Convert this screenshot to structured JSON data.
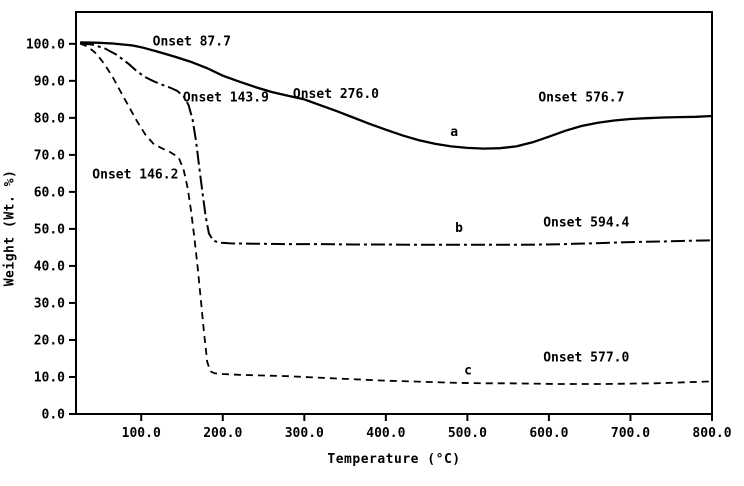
{
  "colors": {
    "foreground": "#000000",
    "background": "#ffffff"
  },
  "chart_data": {
    "type": "line",
    "title": "",
    "xlabel": "Temperature (°C)",
    "ylabel": "Weight (Wt. %)",
    "xlim": [
      20,
      800
    ],
    "ylim": [
      0,
      108.6
    ],
    "grid": false,
    "legend_position": "none",
    "x_ticks": [
      100,
      200,
      300,
      400,
      500,
      600,
      700,
      800
    ],
    "x_tick_labels": [
      "100.0",
      "200.0",
      "300.0",
      "400.0",
      "500.0",
      "600.0",
      "700.0",
      "800.0"
    ],
    "y_ticks": [
      0,
      10,
      20,
      30,
      40,
      50,
      60,
      70,
      80,
      90,
      100
    ],
    "y_tick_labels": [
      "0.0",
      "10.0",
      "20.0",
      "30.0",
      "40.0",
      "50.0",
      "60.0",
      "70.0",
      "80.0",
      "90.0",
      "100.0"
    ],
    "series": [
      {
        "name": "a",
        "style": "solid",
        "points": [
          [
            25,
            100.4
          ],
          [
            45,
            100.3
          ],
          [
            65,
            100.1
          ],
          [
            88,
            99.6
          ],
          [
            100,
            99.1
          ],
          [
            120,
            97.9
          ],
          [
            140,
            96.6
          ],
          [
            160,
            95.2
          ],
          [
            180,
            93.5
          ],
          [
            200,
            91.4
          ],
          [
            220,
            89.8
          ],
          [
            240,
            88.3
          ],
          [
            260,
            87.0
          ],
          [
            280,
            86.0
          ],
          [
            300,
            85.0
          ],
          [
            320,
            83.4
          ],
          [
            340,
            81.8
          ],
          [
            360,
            80.1
          ],
          [
            380,
            78.4
          ],
          [
            400,
            76.8
          ],
          [
            420,
            75.3
          ],
          [
            440,
            74.0
          ],
          [
            460,
            73.0
          ],
          [
            480,
            72.3
          ],
          [
            500,
            71.9
          ],
          [
            520,
            71.7
          ],
          [
            540,
            71.8
          ],
          [
            560,
            72.3
          ],
          [
            580,
            73.4
          ],
          [
            600,
            74.9
          ],
          [
            620,
            76.5
          ],
          [
            640,
            77.8
          ],
          [
            660,
            78.7
          ],
          [
            680,
            79.3
          ],
          [
            700,
            79.7
          ],
          [
            720,
            79.9
          ],
          [
            740,
            80.1
          ],
          [
            760,
            80.2
          ],
          [
            780,
            80.3
          ],
          [
            800,
            80.5
          ]
        ]
      },
      {
        "name": "b",
        "style": "dash-dot",
        "points": [
          [
            25,
            100.2
          ],
          [
            40,
            99.8
          ],
          [
            55,
            98.8
          ],
          [
            70,
            97.0
          ],
          [
            85,
            94.5
          ],
          [
            95,
            92.5
          ],
          [
            105,
            91.0
          ],
          [
            115,
            89.9
          ],
          [
            125,
            89.0
          ],
          [
            135,
            88.2
          ],
          [
            144,
            87.3
          ],
          [
            152,
            85.8
          ],
          [
            158,
            83.5
          ],
          [
            163,
            79.5
          ],
          [
            167,
            74.0
          ],
          [
            171,
            67.0
          ],
          [
            175,
            60.0
          ],
          [
            179,
            53.5
          ],
          [
            183,
            48.8
          ],
          [
            188,
            46.9
          ],
          [
            195,
            46.3
          ],
          [
            210,
            46.1
          ],
          [
            240,
            46.0
          ],
          [
            280,
            45.9
          ],
          [
            320,
            45.9
          ],
          [
            360,
            45.8
          ],
          [
            400,
            45.8
          ],
          [
            440,
            45.7
          ],
          [
            480,
            45.7
          ],
          [
            520,
            45.7
          ],
          [
            560,
            45.7
          ],
          [
            594,
            45.8
          ],
          [
            620,
            45.9
          ],
          [
            650,
            46.1
          ],
          [
            680,
            46.3
          ],
          [
            710,
            46.5
          ],
          [
            740,
            46.6
          ],
          [
            770,
            46.8
          ],
          [
            800,
            46.9
          ]
        ]
      },
      {
        "name": "c",
        "style": "dashed",
        "points": [
          [
            25,
            100.1
          ],
          [
            35,
            99.2
          ],
          [
            45,
            97.3
          ],
          [
            55,
            94.5
          ],
          [
            65,
            91.0
          ],
          [
            75,
            87.0
          ],
          [
            85,
            83.0
          ],
          [
            95,
            79.0
          ],
          [
            105,
            75.5
          ],
          [
            115,
            73.0
          ],
          [
            125,
            71.8
          ],
          [
            135,
            70.8
          ],
          [
            146,
            69.3
          ],
          [
            152,
            66.0
          ],
          [
            157,
            61.0
          ],
          [
            161,
            55.0
          ],
          [
            165,
            48.0
          ],
          [
            169,
            40.0
          ],
          [
            173,
            31.0
          ],
          [
            177,
            22.0
          ],
          [
            181,
            14.0
          ],
          [
            185,
            11.5
          ],
          [
            190,
            11.0
          ],
          [
            200,
            10.8
          ],
          [
            220,
            10.6
          ],
          [
            250,
            10.4
          ],
          [
            280,
            10.2
          ],
          [
            310,
            9.9
          ],
          [
            340,
            9.6
          ],
          [
            370,
            9.3
          ],
          [
            400,
            9.0
          ],
          [
            430,
            8.8
          ],
          [
            460,
            8.6
          ],
          [
            490,
            8.4
          ],
          [
            520,
            8.3
          ],
          [
            550,
            8.3
          ],
          [
            577,
            8.2
          ],
          [
            610,
            8.1
          ],
          [
            640,
            8.1
          ],
          [
            670,
            8.1
          ],
          [
            700,
            8.2
          ],
          [
            730,
            8.3
          ],
          [
            760,
            8.5
          ],
          [
            800,
            8.8
          ]
        ]
      }
    ],
    "annotations": [
      {
        "text": "Onset 87.7",
        "x": 114,
        "y": 101.9
      },
      {
        "text": "Onset 143.9",
        "x": 151,
        "y": 86.8
      },
      {
        "text": "Onset 276.0",
        "x": 286,
        "y": 87.8
      },
      {
        "text": "Onset 576.7",
        "x": 587,
        "y": 86.8
      },
      {
        "text": "Onset 146.2",
        "x": 40,
        "y": 66.0
      },
      {
        "text": "Onset 594.4",
        "x": 593,
        "y": 53.0
      },
      {
        "text": "Onset 577.0",
        "x": 593,
        "y": 16.5
      },
      {
        "text": "a",
        "x": 479,
        "y": 77.5
      },
      {
        "text": "b",
        "x": 485,
        "y": 51.5
      },
      {
        "text": "c",
        "x": 496,
        "y": 13.0
      }
    ]
  }
}
